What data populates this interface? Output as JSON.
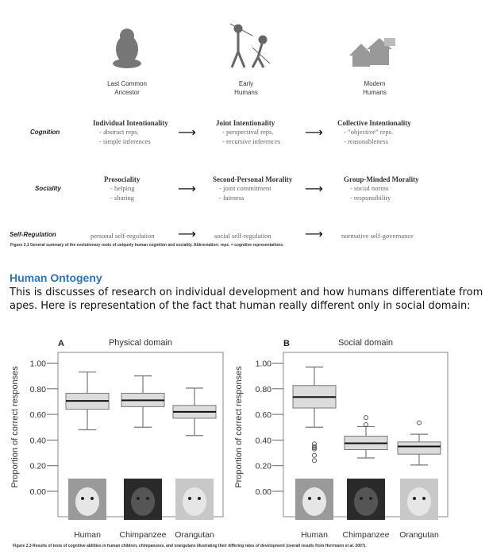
{
  "diagram": {
    "stages": [
      "Last Common\nAncestor",
      "Early\nHumans",
      "Modern\nHumans"
    ],
    "rows": [
      {
        "label": "Cognition",
        "cells": [
          {
            "head": "Individual Intentionality",
            "items": [
              "- abstract reps.",
              "- simple inferences"
            ]
          },
          {
            "head": "Joint Intentionality",
            "items": [
              "- perspectival reps.",
              "- recursive inferences"
            ]
          },
          {
            "head": "Collective Intentionality",
            "items": [
              "- “objective” reps.",
              "- reasonableness"
            ]
          }
        ]
      },
      {
        "label": "Sociality",
        "cells": [
          {
            "head": "Prosociality",
            "items": [
              "- helping",
              "- sharing"
            ]
          },
          {
            "head": "Second-Personal Morality",
            "items": [
              "- joint commitment",
              "- fairness"
            ]
          },
          {
            "head": "Group-Minded Morality",
            "items": [
              "- social norms",
              "- responsibility"
            ]
          }
        ]
      },
      {
        "label": "Self-Regulation",
        "cells": [
          {
            "head": "personal self-regulation",
            "items": []
          },
          {
            "head": "social self-regulation",
            "items": []
          },
          {
            "head": "normative self-governance",
            "items": []
          }
        ]
      }
    ],
    "arrow": "⟶",
    "caption": "Figure 2.1  General summary of the evolutionary roots of uniquely human cognition and sociality. Abbreviation: reps. = cognitive representations."
  },
  "section": {
    "title": "Human Ontogeny",
    "paragraph": "This is discusses of research on individual development and how humans differentiate from apes. Here is representation of the fact that human really different only in social domain:"
  },
  "chart_data": [
    {
      "type": "box",
      "panel": "A",
      "title": "Physical domain",
      "ylabel": "Proportion of correct responses",
      "ylim": [
        0,
        1
      ],
      "yticks": [
        "0.00",
        "0.20",
        "0.40",
        "0.60",
        "0.80",
        "1.00"
      ],
      "categories": [
        "Human",
        "Chimpanzee",
        "Orangutan"
      ],
      "boxes": [
        {
          "min": 0.48,
          "q1": 0.64,
          "median": 0.705,
          "q3": 0.765,
          "max": 0.93,
          "outliers": []
        },
        {
          "min": 0.5,
          "q1": 0.66,
          "median": 0.71,
          "q3": 0.765,
          "max": 0.9,
          "outliers": []
        },
        {
          "min": 0.435,
          "q1": 0.57,
          "median": 0.62,
          "q3": 0.67,
          "max": 0.805,
          "outliers": []
        }
      ]
    },
    {
      "type": "box",
      "panel": "B",
      "title": "Social domain",
      "ylabel": "Proportion of correct responses",
      "ylim": [
        0,
        1
      ],
      "yticks": [
        "0.00",
        "0.20",
        "0.40",
        "0.60",
        "0.80",
        "1.00"
      ],
      "categories": [
        "Human",
        "Chimpanzee",
        "Orangutan"
      ],
      "boxes": [
        {
          "min": 0.5,
          "q1": 0.65,
          "median": 0.735,
          "q3": 0.825,
          "max": 0.97,
          "outliers": [
            0.37,
            0.35,
            0.34,
            0.33,
            0.28,
            0.24
          ]
        },
        {
          "min": 0.26,
          "q1": 0.325,
          "median": 0.375,
          "q3": 0.43,
          "max": 0.505,
          "outliers": [
            0.52,
            0.575
          ]
        },
        {
          "min": 0.205,
          "q1": 0.29,
          "median": 0.35,
          "q3": 0.385,
          "max": 0.445,
          "outliers": [
            0.535
          ]
        }
      ]
    }
  ],
  "figure_caption": "Figure 2.3  Results of tests of cognitive abilities in human children, chimpanzees, and orangutans illustrating their differing rates of development (overall results from Herrmann et al. 2007).",
  "colors": {
    "box_fill": "#dcdcdc",
    "box_stroke": "#777",
    "heading": "#2e74b5"
  }
}
